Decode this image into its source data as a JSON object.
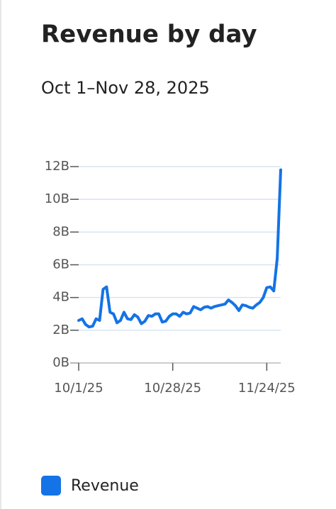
{
  "chart_data": {
    "type": "line",
    "title": "Revenue by day",
    "subtitle": "Oct 1–Nov 28, 2025",
    "x": [
      "2025-10-01",
      "2025-10-02",
      "2025-10-03",
      "2025-10-04",
      "2025-10-05",
      "2025-10-06",
      "2025-10-07",
      "2025-10-08",
      "2025-10-09",
      "2025-10-10",
      "2025-10-11",
      "2025-10-12",
      "2025-10-13",
      "2025-10-14",
      "2025-10-15",
      "2025-10-16",
      "2025-10-17",
      "2025-10-18",
      "2025-10-19",
      "2025-10-20",
      "2025-10-21",
      "2025-10-22",
      "2025-10-23",
      "2025-10-24",
      "2025-10-25",
      "2025-10-26",
      "2025-10-27",
      "2025-10-28",
      "2025-10-29",
      "2025-10-30",
      "2025-10-31",
      "2025-11-01",
      "2025-11-02",
      "2025-11-03",
      "2025-11-04",
      "2025-11-05",
      "2025-11-06",
      "2025-11-07",
      "2025-11-08",
      "2025-11-09",
      "2025-11-10",
      "2025-11-11",
      "2025-11-12",
      "2025-11-13",
      "2025-11-14",
      "2025-11-15",
      "2025-11-16",
      "2025-11-17",
      "2025-11-18",
      "2025-11-19",
      "2025-11-20",
      "2025-11-21",
      "2025-11-22",
      "2025-11-23",
      "2025-11-24",
      "2025-11-25",
      "2025-11-26",
      "2025-11-27",
      "2025-11-28"
    ],
    "series": [
      {
        "name": "Revenue",
        "color": "#1473e6",
        "values": [
          2.6,
          2.7,
          2.35,
          2.2,
          2.25,
          2.7,
          2.6,
          4.5,
          4.65,
          3.1,
          3.0,
          2.45,
          2.6,
          3.1,
          2.7,
          2.65,
          2.95,
          2.8,
          2.4,
          2.55,
          2.9,
          2.85,
          3.0,
          3.0,
          2.5,
          2.55,
          2.85,
          3.0,
          3.0,
          2.85,
          3.1,
          3.0,
          3.05,
          3.45,
          3.35,
          3.25,
          3.4,
          3.45,
          3.35,
          3.45,
          3.5,
          3.55,
          3.6,
          3.85,
          3.7,
          3.5,
          3.2,
          3.55,
          3.5,
          3.4,
          3.35,
          3.55,
          3.7,
          4.0,
          4.6,
          4.65,
          4.4,
          6.4,
          11.8
        ]
      }
    ],
    "ylim": [
      0,
      12
    ],
    "yticks": [
      {
        "value": 0,
        "label": "0B"
      },
      {
        "value": 2,
        "label": "2B"
      },
      {
        "value": 4,
        "label": "4B"
      },
      {
        "value": 6,
        "label": "6B"
      },
      {
        "value": 8,
        "label": "8B"
      },
      {
        "value": 10,
        "label": "10B"
      },
      {
        "value": 12,
        "label": "12B"
      }
    ],
    "xticks": [
      {
        "value": "2025-10-01",
        "label": "10/1/25"
      },
      {
        "value": "2025-10-28",
        "label": "10/28/25"
      },
      {
        "value": "2025-11-24",
        "label": "11/24/25"
      }
    ],
    "grid": true
  }
}
